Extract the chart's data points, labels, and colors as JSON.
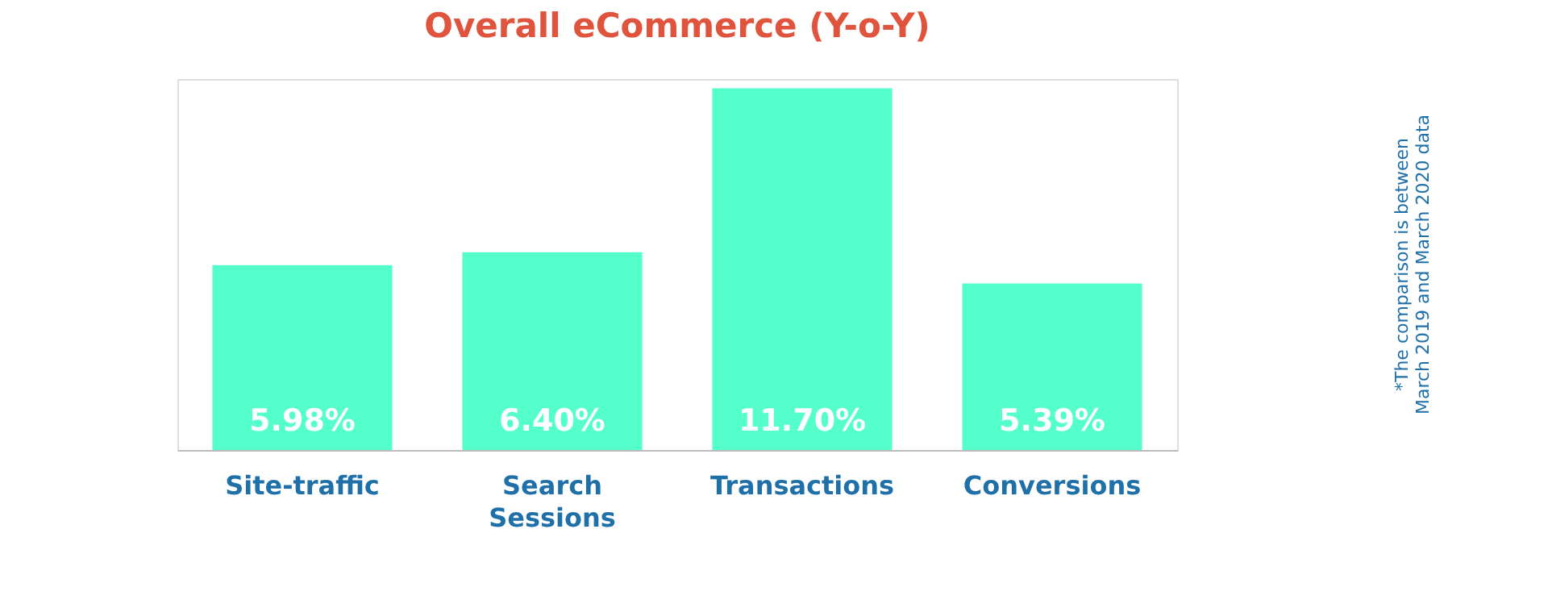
{
  "chart_data": {
    "type": "bar",
    "title": "Overall eCommerce (Y-o-Y)",
    "categories": [
      "Site-traffic",
      "Search Sessions",
      "Transactions",
      "Conversions"
    ],
    "values": [
      5.98,
      6.4,
      11.7,
      5.39
    ],
    "value_labels": [
      "5.98%",
      "6.40%",
      "11.70%",
      "5.39%"
    ],
    "color": "#55ffcc",
    "annotations": [
      "*The comparison is between March 2019 and March 2020 data"
    ]
  }
}
